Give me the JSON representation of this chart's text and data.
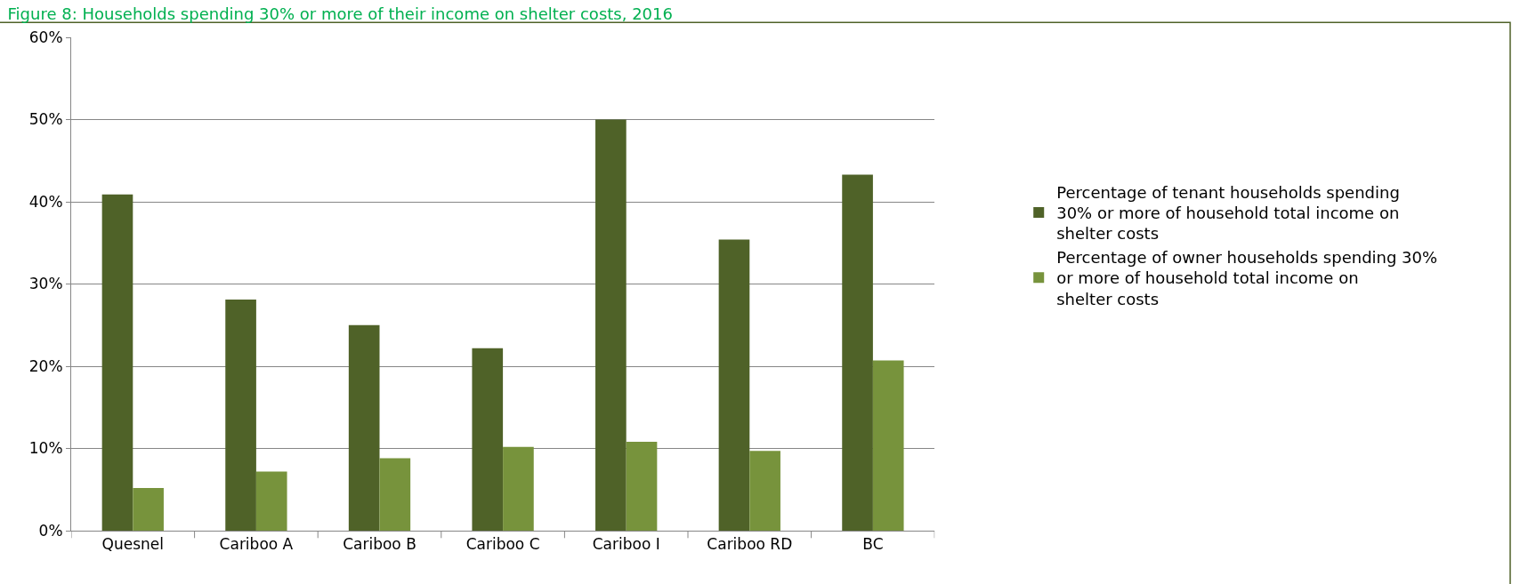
{
  "chart_data": {
    "type": "bar",
    "title": "Figure 8: Households spending 30% or more of their income on shelter costs, 2016",
    "categories": [
      "Quesnel",
      "Cariboo A",
      "Cariboo B",
      "Cariboo C",
      "Cariboo I",
      "Cariboo RD",
      "BC"
    ],
    "series": [
      {
        "name": "Percentage of tenant households spending 30% or more of household total income on shelter costs",
        "color": "#4f6228",
        "values": [
          40.9,
          28.1,
          25.0,
          22.2,
          50.0,
          35.4,
          43.3
        ]
      },
      {
        "name": "Percentage of owner households spending 30% or more of household total income on shelter costs",
        "color": "#77933c",
        "values": [
          5.2,
          7.2,
          8.8,
          10.2,
          10.8,
          9.7,
          20.7
        ]
      }
    ],
    "ylim": [
      0,
      60
    ],
    "yticks": [
      {
        "value": 0,
        "label": "0%"
      },
      {
        "value": 10,
        "label": "10%"
      },
      {
        "value": 20,
        "label": "20%"
      },
      {
        "value": 30,
        "label": "30%"
      },
      {
        "value": 40,
        "label": "40%"
      },
      {
        "value": 50,
        "label": "50%"
      },
      {
        "value": 60,
        "label": "60%"
      }
    ],
    "grid": "y",
    "legend": "right"
  }
}
